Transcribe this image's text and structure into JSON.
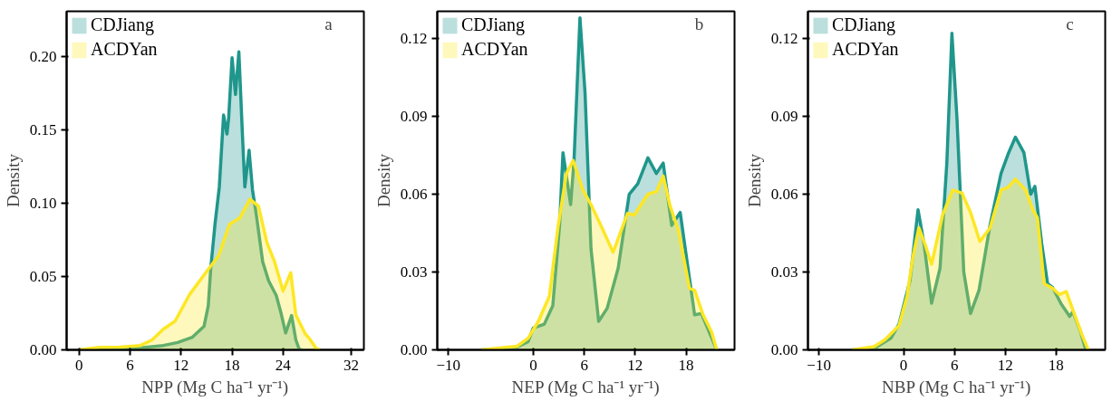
{
  "chart_data": [
    {
      "type": "area",
      "xlabel": "NPP (Mg C ha⁻¹ yr⁻¹)",
      "ylabel": "Density",
      "annotations": [
        "a"
      ],
      "legend": "top left",
      "grid": false,
      "xlim": [
        -1.46,
        33.5
      ],
      "ylim": [
        0,
        0.2306
      ],
      "xticks": [
        0,
        6,
        12,
        18,
        24,
        32
      ],
      "yticks": [
        {
          "value": 0,
          "label": "0.00"
        },
        0.05,
        {
          "value": 0.1,
          "label": "0.10"
        },
        0.15,
        {
          "value": 0.2,
          "label": "0.20"
        }
      ],
      "series": [
        {
          "name": "CDJiang",
          "color": "#1f968b",
          "x": [
            0,
            6.5,
            9.9,
            11.6,
            13.3,
            14.7,
            15.2,
            15.5,
            16.0,
            16.5,
            17.0,
            17.4,
            17.6,
            18.0,
            18.4,
            18.8,
            19.2,
            19.5,
            20.0,
            20.4,
            20.9,
            21.6,
            22.3,
            23.2,
            23.8,
            24.3,
            25.0,
            25.5,
            25.9,
            26.2
          ],
          "values": [
            0,
            0.001,
            0.003,
            0.005,
            0.0085,
            0.016,
            0.03,
            0.056,
            0.086,
            0.111,
            0.16,
            0.147,
            0.158,
            0.199,
            0.174,
            0.203,
            0.149,
            0.111,
            0.136,
            0.109,
            0.09,
            0.06,
            0.047,
            0.037,
            0.024,
            0.0115,
            0.0234,
            0.0068,
            0.0004,
            0
          ]
        },
        {
          "name": "ACDYan",
          "color": "#fde725",
          "x": [
            0,
            2.4,
            4.8,
            7.2,
            8.6,
            9.9,
            11.3,
            13.0,
            14.7,
            16.4,
            17.7,
            18.9,
            20.1,
            21.1,
            22.1,
            23.0,
            24.0,
            24.9,
            25.5,
            26.6,
            27.2,
            27.9,
            28.3
          ],
          "values": [
            0,
            0.0017,
            0.0019,
            0.003,
            0.0068,
            0.014,
            0.0196,
            0.0377,
            0.051,
            0.064,
            0.0855,
            0.0898,
            0.1026,
            0.098,
            0.073,
            0.06,
            0.04,
            0.0526,
            0.0238,
            0.011,
            0.0068,
            0.0009,
            0
          ]
        }
      ]
    },
    {
      "type": "area",
      "xlabel": "NEP (Mg C ha⁻¹ yr⁻¹)",
      "ylabel": "Density",
      "annotations": [
        "b"
      ],
      "legend": "top left",
      "grid": false,
      "xlim": [
        -11.3,
        23.7
      ],
      "ylim": [
        0,
        0.1305
      ],
      "xticks": [
        {
          "value": -10,
          "label": "−10"
        },
        0,
        6,
        12,
        18
      ],
      "yticks": [
        {
          "value": 0,
          "label": "0.00"
        },
        0.03,
        0.06,
        0.09,
        0.12
      ],
      "series": [
        {
          "name": "CDJiang",
          "color": "#1f968b",
          "x": [
            -6.1,
            -2.3,
            -0.6,
            0,
            1.3,
            2.3,
            3.1,
            3.5,
            4.4,
            4.8,
            5.5,
            6.1,
            6.8,
            7.7,
            8.7,
            10.0,
            11.3,
            12.3,
            13.5,
            14.5,
            15.3,
            16.3,
            17.3,
            17.9,
            19.0,
            19.8,
            20.8,
            21.6
          ],
          "values": [
            0,
            0.0005,
            0.0032,
            0.0084,
            0.0099,
            0.017,
            0.048,
            0.076,
            0.056,
            0.073,
            0.128,
            0.099,
            0.039,
            0.011,
            0.016,
            0.0315,
            0.06,
            0.064,
            0.074,
            0.068,
            0.072,
            0.048,
            0.053,
            0.039,
            0.0135,
            0.014,
            0.0063,
            0
          ]
        },
        {
          "name": "ACDYan",
          "color": "#fde725",
          "x": [
            -6.1,
            -1.9,
            -0.6,
            0.6,
            1.9,
            2.9,
            3.9,
            4.7,
            5.8,
            6.8,
            8.1,
            9.4,
            11.1,
            11.9,
            13.5,
            14.5,
            15.3,
            16.1,
            17.1,
            18.4,
            19.0,
            20.0,
            21.0,
            21.6
          ],
          "values": [
            0,
            0.0014,
            0.0045,
            0.011,
            0.0207,
            0.047,
            0.068,
            0.073,
            0.062,
            0.056,
            0.047,
            0.0376,
            0.0526,
            0.052,
            0.06,
            0.061,
            0.067,
            0.0556,
            0.046,
            0.0237,
            0.023,
            0.0135,
            0.0069,
            0
          ]
        }
      ]
    },
    {
      "type": "area",
      "xlabel": "NBP (Mg C ha⁻¹ yr⁻¹)",
      "ylabel": "Density",
      "annotations": [
        "c"
      ],
      "legend": "top left",
      "grid": false,
      "xlim": [
        -11.3,
        23.8
      ],
      "ylim": [
        0,
        0.1305
      ],
      "xticks": [
        {
          "value": -10,
          "label": "−10"
        },
        0,
        6,
        12,
        18
      ],
      "yticks": [
        {
          "value": 0,
          "label": "0.00"
        },
        0.03,
        0.06,
        0.09,
        0.12
      ],
      "series": [
        {
          "name": "CDJiang",
          "color": "#1f968b",
          "x": [
            -6.1,
            -3.5,
            -1.5,
            -0.55,
            0.75,
            1.7,
            2.4,
            3.3,
            4.3,
            5.1,
            5.7,
            6.3,
            7.1,
            7.9,
            8.9,
            10.2,
            11.5,
            12.4,
            13.2,
            14.2,
            15.0,
            15.5,
            16.3,
            17.0,
            17.6,
            18.6,
            19.6,
            20.0,
            20.9,
            21.5
          ],
          "values": [
            0,
            0.0005,
            0.0045,
            0.0099,
            0.0267,
            0.054,
            0.041,
            0.018,
            0.0315,
            0.072,
            0.122,
            0.089,
            0.03,
            0.014,
            0.023,
            0.048,
            0.068,
            0.076,
            0.082,
            0.076,
            0.06,
            0.063,
            0.041,
            0.0255,
            0.024,
            0.0177,
            0.0129,
            0.0147,
            0.0069,
            0
          ]
        },
        {
          "name": "ACDYan",
          "color": "#fde725",
          "x": [
            -6.1,
            -3.5,
            -2.2,
            -0.55,
            0.4,
            1.1,
            1.8,
            2.5,
            3.3,
            4.6,
            5.8,
            6.9,
            7.9,
            9.0,
            10.2,
            11.5,
            12.4,
            13.2,
            14.4,
            15.2,
            15.8,
            16.6,
            17.6,
            18.4,
            19.2,
            20.2,
            21.0,
            21.8
          ],
          "values": [
            0,
            0.0012,
            0.0039,
            0.0093,
            0.0207,
            0.036,
            0.047,
            0.041,
            0.033,
            0.052,
            0.0616,
            0.0604,
            0.053,
            0.0418,
            0.047,
            0.0616,
            0.0628,
            0.0658,
            0.0616,
            0.0544,
            0.0508,
            0.0255,
            0.0237,
            0.0213,
            0.0225,
            0.0135,
            0.0063,
            0
          ]
        }
      ]
    }
  ]
}
